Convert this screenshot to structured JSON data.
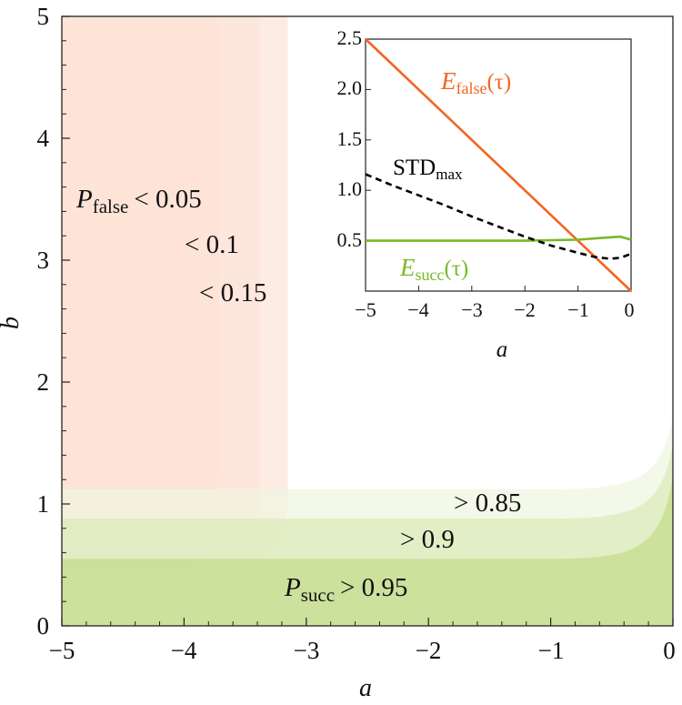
{
  "chart_data": [
    {
      "type": "area",
      "name": "main",
      "xlabel": "a",
      "ylabel": "b",
      "xlim": [
        -5,
        0
      ],
      "ylim": [
        0,
        5
      ],
      "xticks": [
        "−5",
        "−4",
        "−3",
        "−2",
        "−1",
        "0"
      ],
      "yticks": [
        "0",
        "1",
        "2",
        "3",
        "4",
        "5"
      ],
      "false_regions": [
        {
          "label": "< 0.05",
          "a_bound": -3.72,
          "b_floor": 0.6,
          "color": "#f7a47c"
        },
        {
          "label": "< 0.1",
          "a_bound": -3.38,
          "b_floor": 0.42,
          "color": "#fcd5c0"
        },
        {
          "label": "< 0.15",
          "a_bound": -3.15,
          "b_floor": 0.33,
          "color": "#fde8de"
        }
      ],
      "succ_regions": [
        {
          "label": "> 0.85",
          "b_bound": 1.12,
          "b_at_zero": 1.72,
          "color": "#eef5df"
        },
        {
          "label": "> 0.9",
          "b_bound": 0.88,
          "b_at_zero": 1.48,
          "color": "#dbeab9"
        },
        {
          "label": "> 0.95",
          "b_bound": 0.55,
          "b_at_zero": 1.22,
          "color": "#c2dc8c"
        }
      ],
      "annotations": {
        "p_false_symbol": "P",
        "p_false_sub": "false",
        "p_false_first": "< 0.05",
        "p_false_second": "< 0.1",
        "p_false_third": "< 0.15",
        "p_succ_symbol": "P",
        "p_succ_sub": "succ",
        "p_succ_first": "> 0.95",
        "p_succ_second": "> 0.9",
        "p_succ_third": "> 0.85"
      }
    },
    {
      "type": "line",
      "name": "inset",
      "xlabel": "a",
      "xlim": [
        -5,
        0
      ],
      "ylim": [
        0,
        2.5
      ],
      "xticks": [
        "−5",
        "−4",
        "−3",
        "−2",
        "−1",
        "0"
      ],
      "yticks": [
        "0.5",
        "1.0",
        "1.5",
        "2.0",
        "2.5"
      ],
      "series": [
        {
          "name": "E_false(τ)",
          "color": "#f26522",
          "x": [
            -5,
            0
          ],
          "y": [
            2.5,
            0.0
          ]
        },
        {
          "name": "E_succ(τ)",
          "color": "#7ab828",
          "x": [
            -5,
            -4,
            -3,
            -2,
            -1,
            -0.5,
            -0.2,
            0
          ],
          "y": [
            0.5,
            0.5,
            0.5,
            0.5,
            0.51,
            0.53,
            0.54,
            0.51
          ]
        },
        {
          "name": "STD_max",
          "color": "#000000",
          "dashed": true,
          "x": [
            -5,
            -4.5,
            -4,
            -3.5,
            -3,
            -2.5,
            -2,
            -1.5,
            -1,
            -0.7,
            -0.4,
            -0.2,
            0
          ],
          "y": [
            1.16,
            1.05,
            0.95,
            0.85,
            0.74,
            0.64,
            0.54,
            0.45,
            0.38,
            0.34,
            0.32,
            0.33,
            0.37
          ]
        }
      ],
      "labels": {
        "e_false_symbol": "E",
        "e_false_sub": "false",
        "e_false_arg": "(τ)",
        "e_succ_symbol": "E",
        "e_succ_sub": "succ",
        "e_succ_arg": "(τ)",
        "std_main": "STD",
        "std_sub": "max"
      }
    }
  ]
}
